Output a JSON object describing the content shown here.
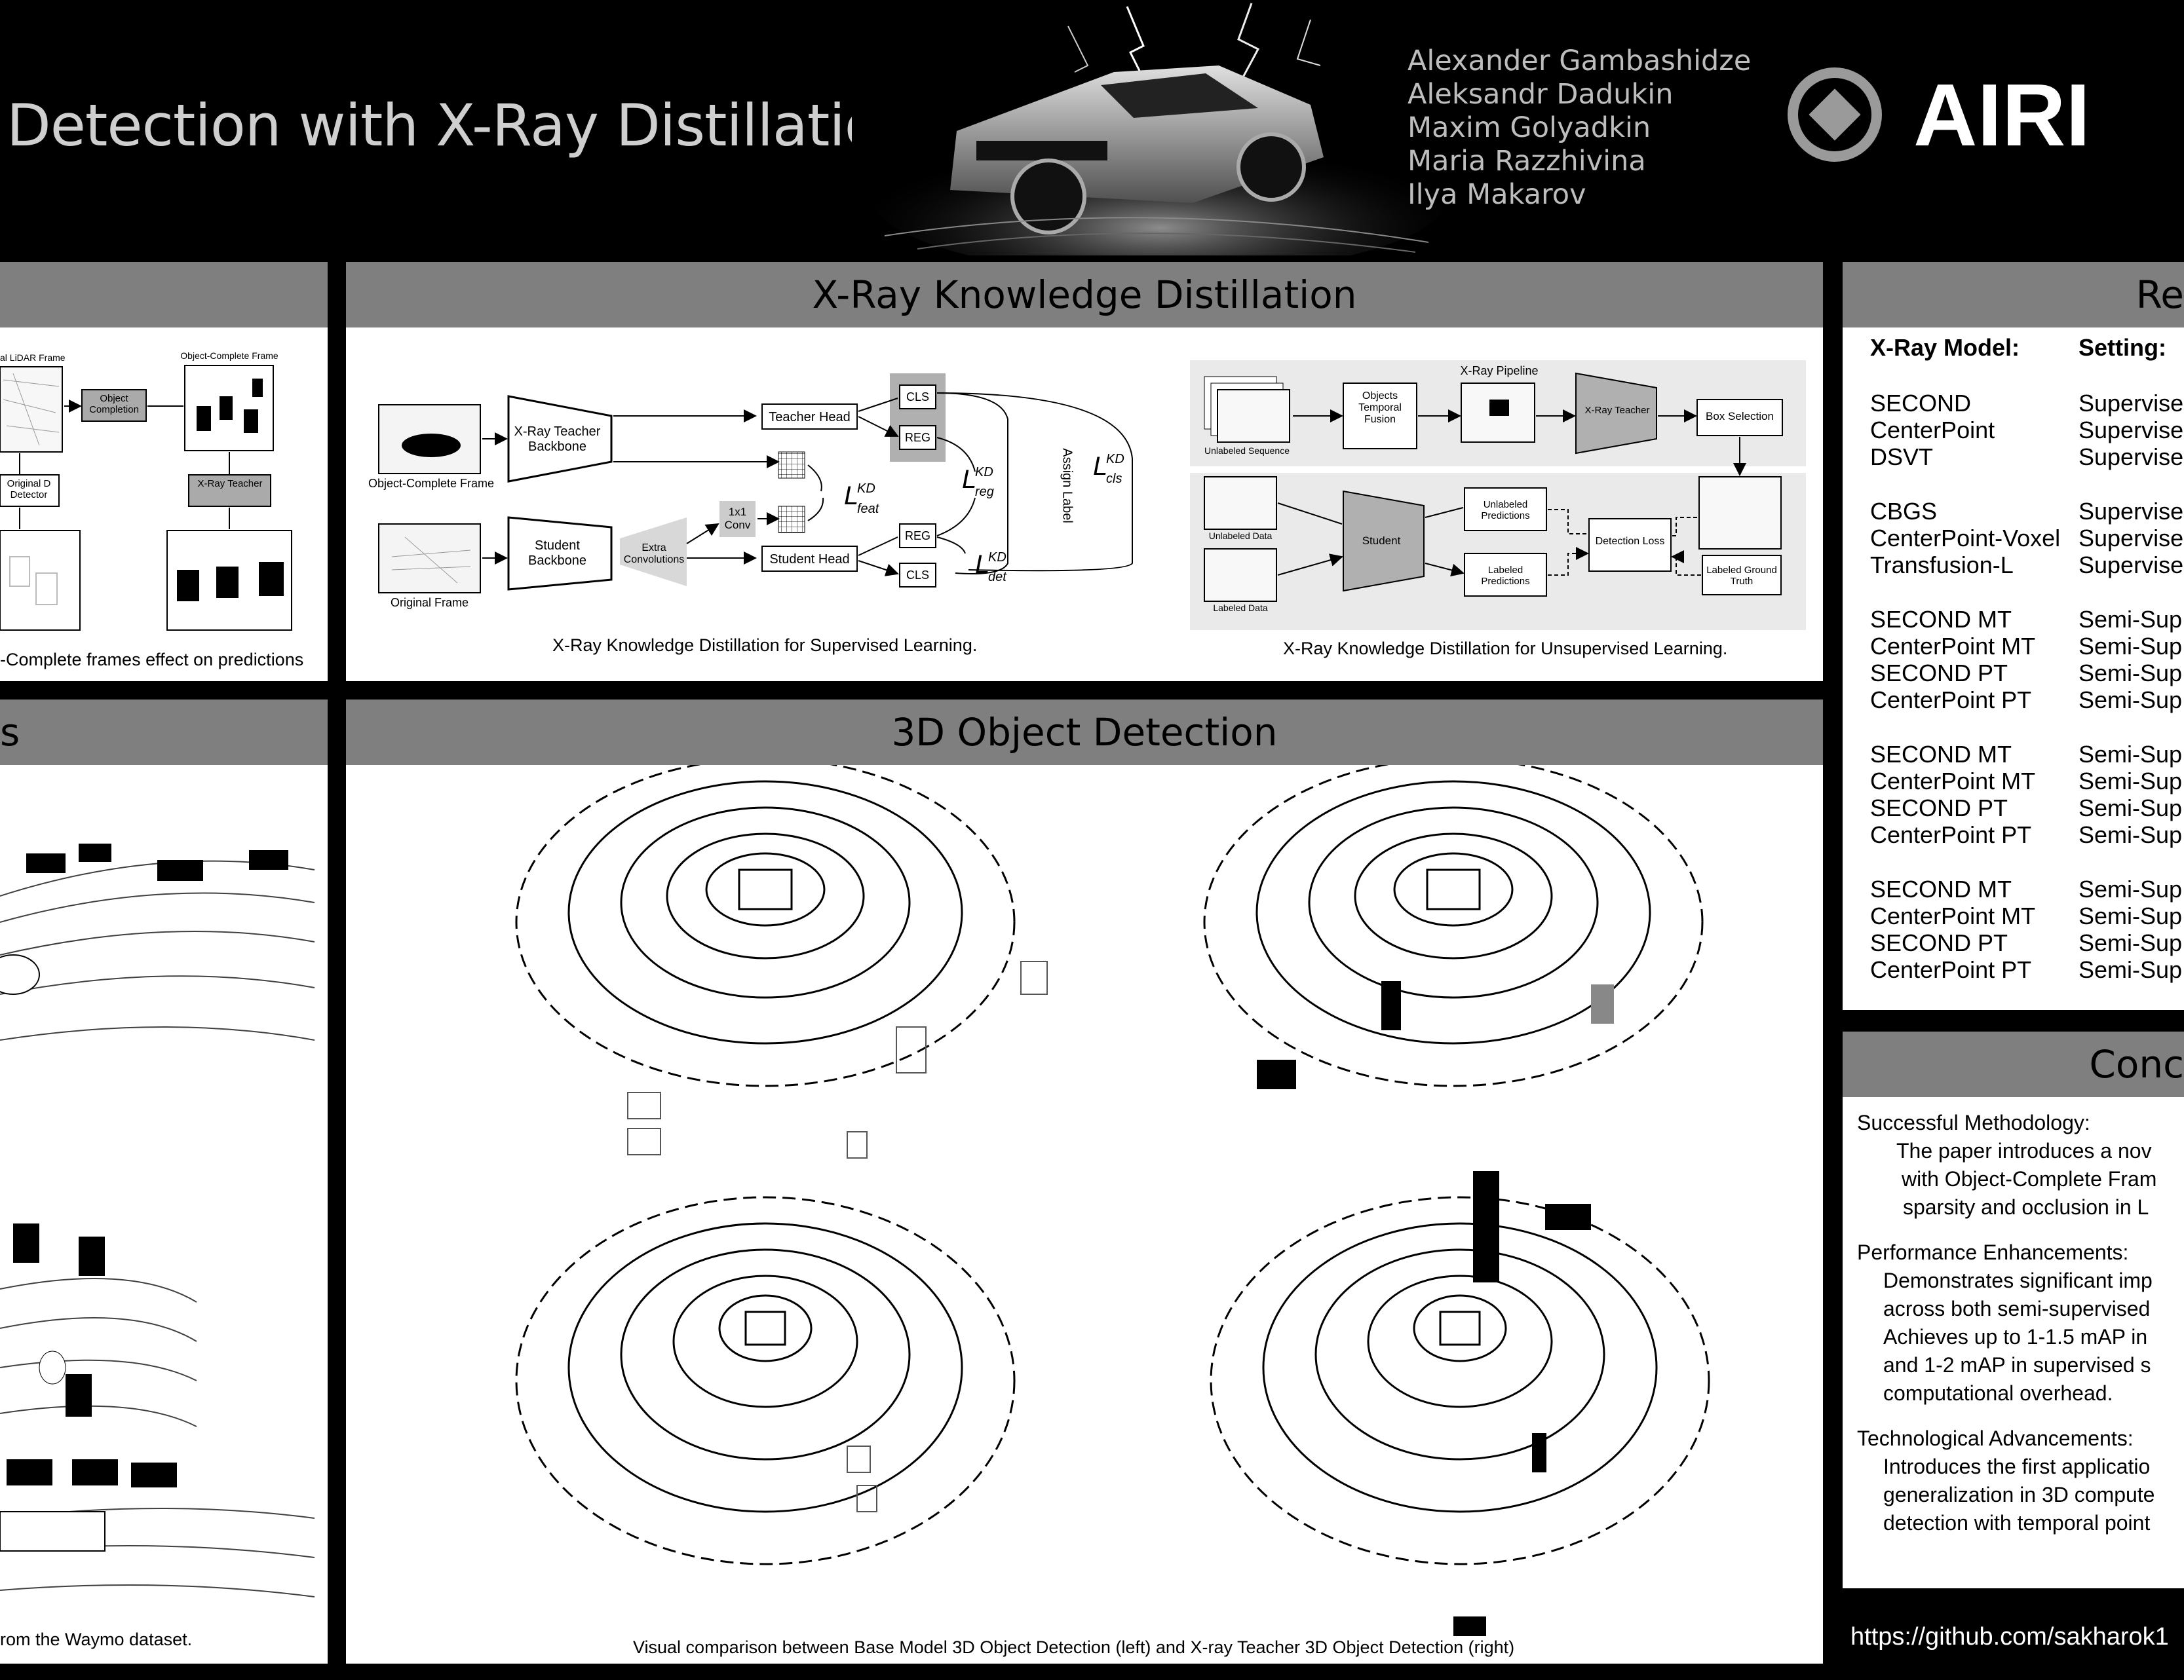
{
  "header": {
    "title": "Detection with X-Ray Distillation",
    "authors": [
      "Alexander Gambashidze",
      "Aleksandr Dadukin",
      "Maxim Golyadkin",
      "Maria Razzhivina",
      "Ilya Makarov"
    ],
    "logo_text": "AIRI"
  },
  "left_panel_top": {
    "labels": {
      "lidar_frame": "al LiDAR Frame",
      "object_complete_frame": "Object-Complete Frame",
      "object_completion": "Object Completion",
      "original_detector": "Original D Detector",
      "xray_teacher": "X-Ray Teacher"
    },
    "caption": "-Complete frames effect on predictions"
  },
  "left_panel_bottom": {
    "title": "s",
    "caption": "rom the Waymo dataset."
  },
  "kd_panel": {
    "title": "X-Ray Knowledge Distillation",
    "supervised": {
      "object_complete_frame": "Object-Complete Frame",
      "original_frame": "Original Frame",
      "teacher_backbone": "X-Ray Teacher Backbone",
      "student_backbone": "Student Backbone",
      "extra_conv": "Extra Convolutions",
      "conv_1x1": "1x1 Conv",
      "teacher_head": "Teacher Head",
      "student_head": "Student Head",
      "cls": "CLS",
      "reg": "REG",
      "assign_label": "Assign Label",
      "l_feat": "L",
      "l_feat_sub": "feat",
      "l_reg_sub": "reg",
      "l_cls_sub": "cls",
      "l_det_sub": "det",
      "kd_sup": "KD",
      "caption": "X-Ray Knowledge Distillation for Supervised Learning."
    },
    "unsupervised": {
      "unlabeled_sequence": "Unlabeled Sequence",
      "temporal_fusion": "Objects Temporal Fusion",
      "xray_pipeline": "X-Ray Pipeline",
      "xray_teacher": "X-Ray Teacher",
      "box_selection": "Box Selection",
      "unlabeled_data": "Unlabeled Data",
      "labeled_data": "Labeled Data",
      "student": "Student",
      "unlabeled_predictions": "Unlabeled Predictions",
      "labeled_predictions": "Labeled Predictions",
      "detection_loss": "Detection Loss",
      "labeled_gt": "Labeled Ground Truth",
      "caption": "X-Ray Knowledge Distillation for Unsupervised Learning."
    }
  },
  "detection_panel": {
    "title": "3D Object Detection",
    "caption": "Visual comparison between Base Model 3D Object Detection (left) and X-ray Teacher 3D Object Detection (right)"
  },
  "results_panel": {
    "title": "Re",
    "col_model": "X-Ray Model:",
    "col_setting": "Setting:",
    "groups": [
      [
        [
          "SECOND",
          "Supervise"
        ],
        [
          "CenterPoint",
          "Supervise"
        ],
        [
          "DSVT",
          "Supervise"
        ]
      ],
      [
        [
          "CBGS",
          "Supervise"
        ],
        [
          "CenterPoint-Voxel",
          "Supervise"
        ],
        [
          "Transfusion-L",
          "Supervise"
        ]
      ],
      [
        [
          "SECOND MT",
          "Semi-Sup"
        ],
        [
          "CenterPoint MT",
          "Semi-Sup"
        ],
        [
          "SECOND PT",
          "Semi-Sup"
        ],
        [
          "CenterPoint PT",
          "Semi-Sup"
        ]
      ],
      [
        [
          "SECOND MT",
          "Semi-Sup"
        ],
        [
          "CenterPoint MT",
          "Semi-Sup"
        ],
        [
          "SECOND PT",
          "Semi-Sup"
        ],
        [
          "CenterPoint PT",
          "Semi-Sup"
        ]
      ],
      [
        [
          "SECOND MT",
          "Semi-Sup"
        ],
        [
          "CenterPoint MT",
          "Semi-Sup"
        ],
        [
          "SECOND PT",
          "Semi-Sup"
        ],
        [
          "CenterPoint PT",
          "Semi-Sup"
        ]
      ]
    ]
  },
  "conclusion_panel": {
    "title": "Conc",
    "lines": [
      "Successful Methodology:",
      "The paper introduces a nov",
      "with Object-Complete Fram",
      "sparsity and occlusion in L",
      "",
      "Performance Enhancements:",
      "Demonstrates significant imp",
      "across both semi-supervised",
      "Achieves up to 1-1.5 mAP in",
      "and 1-2 mAP in supervised s",
      "computational overhead.",
      "",
      "Technological Advancements:",
      "Introduces the first applicatio",
      "generalization in 3D compute",
      "detection with temporal point"
    ]
  },
  "footer": {
    "url": "https://github.com/sakharok1"
  }
}
